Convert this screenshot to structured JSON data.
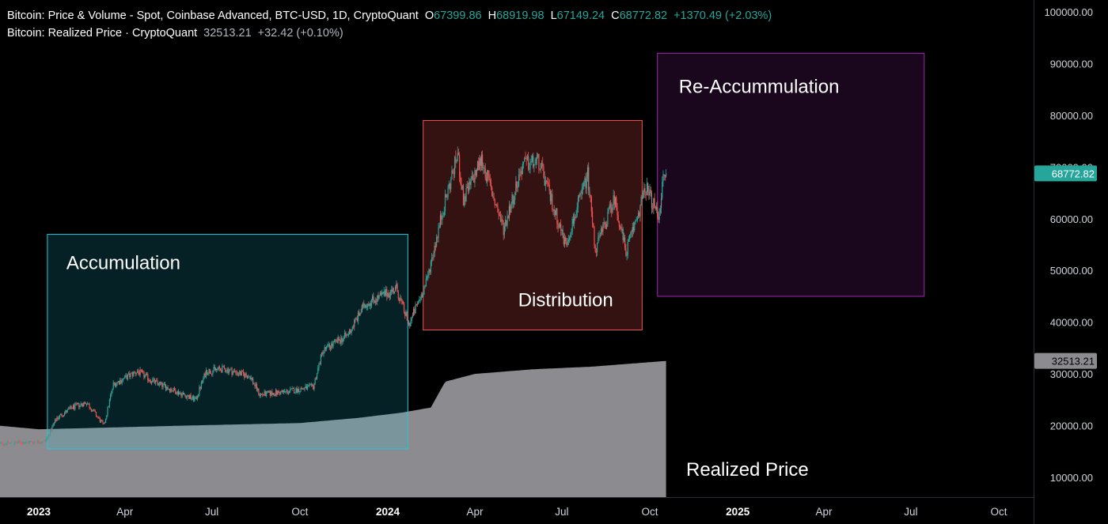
{
  "legend": {
    "series1_title": "Bitcoin: Price & Volume - Spot, Coinbase Advanced, BTC-USD, 1D, CryptoQuant",
    "o_label": "O",
    "o_value": "67399.86",
    "h_label": "H",
    "h_value": "68919.98",
    "l_label": "L",
    "l_value": "67149.24",
    "c_label": "C",
    "c_value": "68772.82",
    "change": "+1370.49 (+2.03%)",
    "series2_title": "Bitcoin: Realized Price · CryptoQuant",
    "series2_value": "32513.21",
    "series2_change": "+32.42 (+0.10%)"
  },
  "chart_data": {
    "type": "candlestick-area",
    "y_range": [
      5000,
      102000
    ],
    "y_ticks": [
      "10000.00",
      "20000.00",
      "30000.00",
      "40000.00",
      "50000.00",
      "60000.00",
      "70000.00",
      "80000.00",
      "90000.00",
      "100000.00"
    ],
    "y_tick_values": [
      10000,
      20000,
      30000,
      40000,
      50000,
      60000,
      70000,
      80000,
      90000,
      100000
    ],
    "x_ticks": [
      {
        "label": "2023",
        "date": "2023-01-01",
        "bold": true
      },
      {
        "label": "Apr",
        "date": "2023-04-01",
        "bold": false
      },
      {
        "label": "Jul",
        "date": "2023-07-01",
        "bold": false
      },
      {
        "label": "Oct",
        "date": "2023-10-01",
        "bold": false
      },
      {
        "label": "2024",
        "date": "2024-01-01",
        "bold": true
      },
      {
        "label": "Apr",
        "date": "2024-04-01",
        "bold": false
      },
      {
        "label": "Jul",
        "date": "2024-07-01",
        "bold": false
      },
      {
        "label": "Oct",
        "date": "2024-10-01",
        "bold": false
      },
      {
        "label": "2025",
        "date": "2025-01-01",
        "bold": true
      },
      {
        "label": "Apr",
        "date": "2025-04-01",
        "bold": false
      },
      {
        "label": "Jul",
        "date": "2025-07-01",
        "bold": false
      },
      {
        "label": "Oct",
        "date": "2025-10-01",
        "bold": false
      }
    ],
    "price_anchors": [
      {
        "date": "2022-11-20",
        "price": 16500
      },
      {
        "date": "2023-01-08",
        "price": 17000
      },
      {
        "date": "2023-01-20",
        "price": 21500
      },
      {
        "date": "2023-02-05",
        "price": 23500
      },
      {
        "date": "2023-02-20",
        "price": 24500
      },
      {
        "date": "2023-03-10",
        "price": 20000
      },
      {
        "date": "2023-03-20",
        "price": 28000
      },
      {
        "date": "2023-04-14",
        "price": 30500
      },
      {
        "date": "2023-05-01",
        "price": 28500
      },
      {
        "date": "2023-06-14",
        "price": 25000
      },
      {
        "date": "2023-06-25",
        "price": 30500
      },
      {
        "date": "2023-07-14",
        "price": 31000
      },
      {
        "date": "2023-08-10",
        "price": 29500
      },
      {
        "date": "2023-08-20",
        "price": 26000
      },
      {
        "date": "2023-09-15",
        "price": 26500
      },
      {
        "date": "2023-10-15",
        "price": 27500
      },
      {
        "date": "2023-10-25",
        "price": 34500
      },
      {
        "date": "2023-11-20",
        "price": 37500
      },
      {
        "date": "2023-12-08",
        "price": 43500
      },
      {
        "date": "2024-01-10",
        "price": 46500
      },
      {
        "date": "2024-01-23",
        "price": 39500
      },
      {
        "date": "2024-02-10",
        "price": 47500
      },
      {
        "date": "2024-02-28",
        "price": 62000
      },
      {
        "date": "2024-03-14",
        "price": 72500
      },
      {
        "date": "2024-03-20",
        "price": 63500
      },
      {
        "date": "2024-04-08",
        "price": 71500
      },
      {
        "date": "2024-05-01",
        "price": 58000
      },
      {
        "date": "2024-05-21",
        "price": 70500
      },
      {
        "date": "2024-06-07",
        "price": 71000
      },
      {
        "date": "2024-07-05",
        "price": 55000
      },
      {
        "date": "2024-07-28",
        "price": 68500
      },
      {
        "date": "2024-08-05",
        "price": 54000
      },
      {
        "date": "2024-08-25",
        "price": 64000
      },
      {
        "date": "2024-09-06",
        "price": 53500
      },
      {
        "date": "2024-09-27",
        "price": 66000
      },
      {
        "date": "2024-10-10",
        "price": 60500
      },
      {
        "date": "2024-10-15",
        "price": 67500
      },
      {
        "date": "2024-10-18",
        "price": 68800
      }
    ],
    "realized_price_anchors": [
      {
        "date": "2022-11-20",
        "value": 20000
      },
      {
        "date": "2023-01-01",
        "value": 19300
      },
      {
        "date": "2023-02-15",
        "value": 19500
      },
      {
        "date": "2023-06-01",
        "value": 20000
      },
      {
        "date": "2023-10-01",
        "value": 20500
      },
      {
        "date": "2023-12-01",
        "value": 21500
      },
      {
        "date": "2024-01-15",
        "value": 22500
      },
      {
        "date": "2024-02-15",
        "value": 23500
      },
      {
        "date": "2024-03-01",
        "value": 28500
      },
      {
        "date": "2024-04-01",
        "value": 30000
      },
      {
        "date": "2024-06-01",
        "value": 30900
      },
      {
        "date": "2024-08-01",
        "value": 31400
      },
      {
        "date": "2024-10-18",
        "value": 32513.21
      }
    ],
    "annotations": [
      {
        "label": "Accumulation",
        "from": "2023-01-10",
        "to": "2024-01-22",
        "top": 57000,
        "bottom": 15500,
        "stroke": "#26c6da",
        "fill": "rgba(38,198,218,0.17)"
      },
      {
        "label": "Distribution",
        "from": "2024-02-07",
        "to": "2024-09-23",
        "top": 79000,
        "bottom": 38500,
        "stroke": "#ef5350",
        "fill": "rgba(239,83,80,0.22)"
      },
      {
        "label": "Re-Accummulation",
        "from": "2024-10-09",
        "to": "2025-07-15",
        "top": 92000,
        "bottom": 45000,
        "stroke": "#9c27b0",
        "fill": "rgba(156,39,176,0.17)"
      }
    ],
    "area_label": "Realized Price",
    "last_price_label": "68772.82",
    "last_price": 68772.82,
    "last_realized_label": "32513.21",
    "last_realized": 32513.21,
    "colors": {
      "up": "#26a69a",
      "down": "#ef5350",
      "neutral": "#8a8a8a",
      "area": "#8c8c90",
      "price_tag": "#26a69a",
      "realized_tag": "#8c8c90",
      "grid_text": "#d1d4dc"
    }
  }
}
